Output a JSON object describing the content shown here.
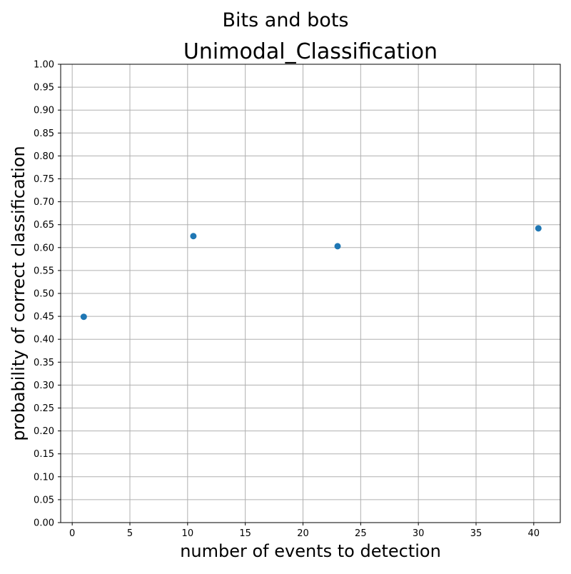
{
  "figure": {
    "suptitle": "Bits and bots"
  },
  "chart_data": {
    "type": "scatter",
    "title": "Unimodal_Classification",
    "xlabel": "number of events to detection",
    "ylabel": "probability of correct classification",
    "xlim": [
      -1,
      42.3
    ],
    "ylim": [
      0,
      1
    ],
    "xticks": [
      0,
      5,
      10,
      15,
      20,
      25,
      30,
      35,
      40
    ],
    "yticks": [
      0.0,
      0.05,
      0.1,
      0.15,
      0.2,
      0.25,
      0.3,
      0.35,
      0.4,
      0.45,
      0.5,
      0.55,
      0.6,
      0.65,
      0.7,
      0.75,
      0.8,
      0.85,
      0.9,
      0.95,
      1.0
    ],
    "grid": true,
    "series": [
      {
        "color": "#1f77b4",
        "points": [
          {
            "x": 1.0,
            "y": 0.449
          },
          {
            "x": 10.5,
            "y": 0.625
          },
          {
            "x": 23.0,
            "y": 0.603
          },
          {
            "x": 40.4,
            "y": 0.642
          }
        ]
      }
    ]
  }
}
